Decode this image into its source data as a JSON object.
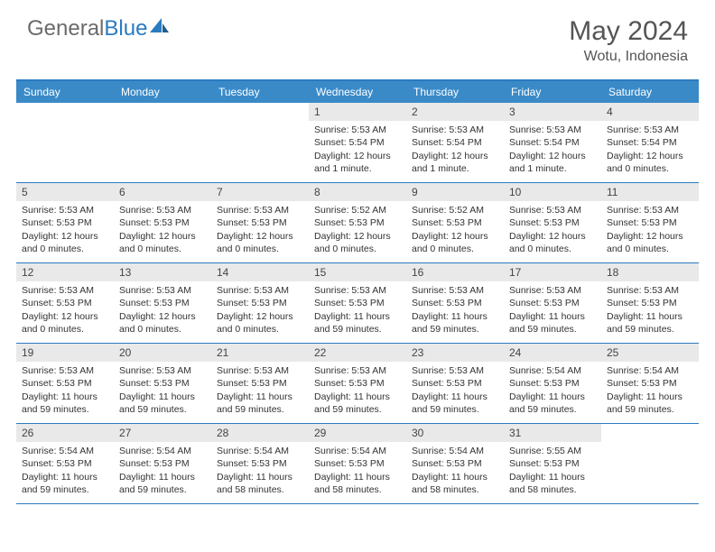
{
  "brand": {
    "part1": "General",
    "part2": "Blue"
  },
  "title": "May 2024",
  "location": "Wotu, Indonesia",
  "colors": {
    "header_bg": "#3a8ac8",
    "border": "#2b7bbf",
    "daynum_bg": "#e9e9e9",
    "text": "#333333",
    "brand_gray": "#6b6b6b",
    "brand_blue": "#2b7bbf"
  },
  "day_headers": [
    "Sunday",
    "Monday",
    "Tuesday",
    "Wednesday",
    "Thursday",
    "Friday",
    "Saturday"
  ],
  "weeks": [
    [
      {
        "n": "",
        "sr": "",
        "ss": "",
        "dl": ""
      },
      {
        "n": "",
        "sr": "",
        "ss": "",
        "dl": ""
      },
      {
        "n": "",
        "sr": "",
        "ss": "",
        "dl": ""
      },
      {
        "n": "1",
        "sr": "Sunrise: 5:53 AM",
        "ss": "Sunset: 5:54 PM",
        "dl": "Daylight: 12 hours and 1 minute."
      },
      {
        "n": "2",
        "sr": "Sunrise: 5:53 AM",
        "ss": "Sunset: 5:54 PM",
        "dl": "Daylight: 12 hours and 1 minute."
      },
      {
        "n": "3",
        "sr": "Sunrise: 5:53 AM",
        "ss": "Sunset: 5:54 PM",
        "dl": "Daylight: 12 hours and 1 minute."
      },
      {
        "n": "4",
        "sr": "Sunrise: 5:53 AM",
        "ss": "Sunset: 5:54 PM",
        "dl": "Daylight: 12 hours and 0 minutes."
      }
    ],
    [
      {
        "n": "5",
        "sr": "Sunrise: 5:53 AM",
        "ss": "Sunset: 5:53 PM",
        "dl": "Daylight: 12 hours and 0 minutes."
      },
      {
        "n": "6",
        "sr": "Sunrise: 5:53 AM",
        "ss": "Sunset: 5:53 PM",
        "dl": "Daylight: 12 hours and 0 minutes."
      },
      {
        "n": "7",
        "sr": "Sunrise: 5:53 AM",
        "ss": "Sunset: 5:53 PM",
        "dl": "Daylight: 12 hours and 0 minutes."
      },
      {
        "n": "8",
        "sr": "Sunrise: 5:52 AM",
        "ss": "Sunset: 5:53 PM",
        "dl": "Daylight: 12 hours and 0 minutes."
      },
      {
        "n": "9",
        "sr": "Sunrise: 5:52 AM",
        "ss": "Sunset: 5:53 PM",
        "dl": "Daylight: 12 hours and 0 minutes."
      },
      {
        "n": "10",
        "sr": "Sunrise: 5:53 AM",
        "ss": "Sunset: 5:53 PM",
        "dl": "Daylight: 12 hours and 0 minutes."
      },
      {
        "n": "11",
        "sr": "Sunrise: 5:53 AM",
        "ss": "Sunset: 5:53 PM",
        "dl": "Daylight: 12 hours and 0 minutes."
      }
    ],
    [
      {
        "n": "12",
        "sr": "Sunrise: 5:53 AM",
        "ss": "Sunset: 5:53 PM",
        "dl": "Daylight: 12 hours and 0 minutes."
      },
      {
        "n": "13",
        "sr": "Sunrise: 5:53 AM",
        "ss": "Sunset: 5:53 PM",
        "dl": "Daylight: 12 hours and 0 minutes."
      },
      {
        "n": "14",
        "sr": "Sunrise: 5:53 AM",
        "ss": "Sunset: 5:53 PM",
        "dl": "Daylight: 12 hours and 0 minutes."
      },
      {
        "n": "15",
        "sr": "Sunrise: 5:53 AM",
        "ss": "Sunset: 5:53 PM",
        "dl": "Daylight: 11 hours and 59 minutes."
      },
      {
        "n": "16",
        "sr": "Sunrise: 5:53 AM",
        "ss": "Sunset: 5:53 PM",
        "dl": "Daylight: 11 hours and 59 minutes."
      },
      {
        "n": "17",
        "sr": "Sunrise: 5:53 AM",
        "ss": "Sunset: 5:53 PM",
        "dl": "Daylight: 11 hours and 59 minutes."
      },
      {
        "n": "18",
        "sr": "Sunrise: 5:53 AM",
        "ss": "Sunset: 5:53 PM",
        "dl": "Daylight: 11 hours and 59 minutes."
      }
    ],
    [
      {
        "n": "19",
        "sr": "Sunrise: 5:53 AM",
        "ss": "Sunset: 5:53 PM",
        "dl": "Daylight: 11 hours and 59 minutes."
      },
      {
        "n": "20",
        "sr": "Sunrise: 5:53 AM",
        "ss": "Sunset: 5:53 PM",
        "dl": "Daylight: 11 hours and 59 minutes."
      },
      {
        "n": "21",
        "sr": "Sunrise: 5:53 AM",
        "ss": "Sunset: 5:53 PM",
        "dl": "Daylight: 11 hours and 59 minutes."
      },
      {
        "n": "22",
        "sr": "Sunrise: 5:53 AM",
        "ss": "Sunset: 5:53 PM",
        "dl": "Daylight: 11 hours and 59 minutes."
      },
      {
        "n": "23",
        "sr": "Sunrise: 5:53 AM",
        "ss": "Sunset: 5:53 PM",
        "dl": "Daylight: 11 hours and 59 minutes."
      },
      {
        "n": "24",
        "sr": "Sunrise: 5:54 AM",
        "ss": "Sunset: 5:53 PM",
        "dl": "Daylight: 11 hours and 59 minutes."
      },
      {
        "n": "25",
        "sr": "Sunrise: 5:54 AM",
        "ss": "Sunset: 5:53 PM",
        "dl": "Daylight: 11 hours and 59 minutes."
      }
    ],
    [
      {
        "n": "26",
        "sr": "Sunrise: 5:54 AM",
        "ss": "Sunset: 5:53 PM",
        "dl": "Daylight: 11 hours and 59 minutes."
      },
      {
        "n": "27",
        "sr": "Sunrise: 5:54 AM",
        "ss": "Sunset: 5:53 PM",
        "dl": "Daylight: 11 hours and 59 minutes."
      },
      {
        "n": "28",
        "sr": "Sunrise: 5:54 AM",
        "ss": "Sunset: 5:53 PM",
        "dl": "Daylight: 11 hours and 58 minutes."
      },
      {
        "n": "29",
        "sr": "Sunrise: 5:54 AM",
        "ss": "Sunset: 5:53 PM",
        "dl": "Daylight: 11 hours and 58 minutes."
      },
      {
        "n": "30",
        "sr": "Sunrise: 5:54 AM",
        "ss": "Sunset: 5:53 PM",
        "dl": "Daylight: 11 hours and 58 minutes."
      },
      {
        "n": "31",
        "sr": "Sunrise: 5:55 AM",
        "ss": "Sunset: 5:53 PM",
        "dl": "Daylight: 11 hours and 58 minutes."
      },
      {
        "n": "",
        "sr": "",
        "ss": "",
        "dl": ""
      }
    ]
  ]
}
